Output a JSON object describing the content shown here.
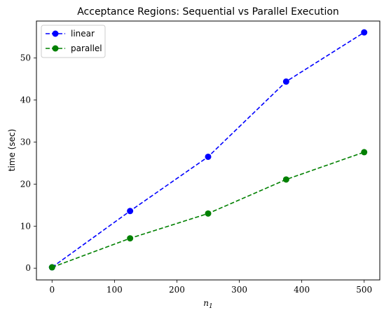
{
  "chart_data": {
    "type": "line",
    "title": "Acceptance Regions: Sequential vs Parallel Execution",
    "xlabel": "n",
    "xlabel_subscript": "1",
    "ylabel": "time (sec)",
    "x": [
      0,
      125,
      250,
      375,
      500
    ],
    "xlim": [
      -25,
      525
    ],
    "ylim": [
      -2.8,
      58.8
    ],
    "xticks": [
      0,
      100,
      200,
      300,
      400,
      500
    ],
    "yticks": [
      0,
      10,
      20,
      30,
      40,
      50
    ],
    "grid": false,
    "legend_position": "top-left",
    "series": [
      {
        "name": "linear",
        "color": "#0000ff",
        "style": "dashed",
        "marker": "circle",
        "values": [
          0.2,
          13.6,
          26.5,
          44.4,
          56.1
        ]
      },
      {
        "name": "parallel",
        "color": "#008000",
        "style": "dashed",
        "marker": "circle",
        "values": [
          0.2,
          7.1,
          13.0,
          21.1,
          27.6
        ]
      }
    ]
  }
}
